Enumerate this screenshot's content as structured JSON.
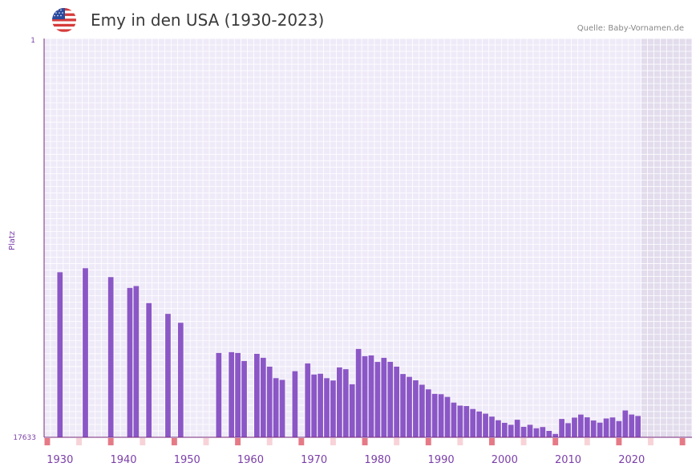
{
  "header": {
    "title": "Emy in den USA (1930-2023)",
    "source": "Quelle: Baby-Vornamen.de",
    "flag_icon": "us-flag-icon"
  },
  "colors": {
    "bar": "#8b57c6",
    "plot_bg": "#efeaf8",
    "grid": "#ffffff",
    "future_bg": "#e2dcec",
    "axis": "#7a2a7a",
    "tick_text": "#7b3fa8",
    "marker_strong": "#e57a86",
    "marker_light": "#f7d3d8"
  },
  "chart_data": {
    "type": "bar",
    "title": "Emy in den USA (1930-2023)",
    "xlabel": "",
    "ylabel": "Platz",
    "xlim": [
      1928,
      2029
    ],
    "ylim": [
      17633,
      1
    ],
    "y_ticks": [
      "1",
      "17633"
    ],
    "x_ticks": [
      1930,
      1940,
      1950,
      1960,
      1970,
      1980,
      1990,
      2000,
      2010,
      2020
    ],
    "series": [
      {
        "name": "Platz",
        "x": [
          1930,
          1934,
          1938,
          1941,
          1942,
          1944,
          1947,
          1949,
          1955,
          1957,
          1958,
          1959,
          1961,
          1962,
          1963,
          1964,
          1965,
          1967,
          1969,
          1970,
          1971,
          1972,
          1973,
          1974,
          1975,
          1976,
          1977,
          1978,
          1979,
          1980,
          1981,
          1982,
          1983,
          1984,
          1985,
          1986,
          1987,
          1988,
          1989,
          1990,
          1991,
          1992,
          1993,
          1994,
          1995,
          1996,
          1997,
          1998,
          1999,
          2000,
          2001,
          2002,
          2003,
          2004,
          2005,
          2006,
          2007,
          2008,
          2009,
          2010,
          2011,
          2012,
          2013,
          2014,
          2015,
          2016,
          2017,
          2018,
          2019,
          2020,
          2021
        ],
        "values": [
          10336,
          10157,
          10549,
          11029,
          10946,
          11700,
          12176,
          12570,
          13905,
          13869,
          13905,
          14260,
          13942,
          14118,
          14508,
          15018,
          15094,
          14710,
          14367,
          14858,
          14822,
          15019,
          15121,
          14543,
          14622,
          15289,
          13727,
          14047,
          14014,
          14301,
          14120,
          14298,
          14508,
          14835,
          14961,
          15113,
          15309,
          15513,
          15714,
          15728,
          15847,
          16099,
          16230,
          16251,
          16382,
          16491,
          16589,
          16718,
          16880,
          16993,
          17079,
          16857,
          17171,
          17079,
          17234,
          17179,
          17349,
          17485,
          16822,
          17008,
          16763,
          16628,
          16750,
          16890,
          16985,
          16799,
          16756,
          16916,
          16446,
          16626,
          16689
        ]
      }
    ],
    "marker_years_strong": [
      1928,
      1938,
      1948,
      1958,
      1968,
      1978,
      1988,
      1998,
      2008,
      2018,
      2028
    ],
    "marker_years_light": [
      1933,
      1943,
      1953,
      1963,
      1973,
      1983,
      1993,
      2003,
      2013,
      2023
    ],
    "future_years_start": 2022
  }
}
